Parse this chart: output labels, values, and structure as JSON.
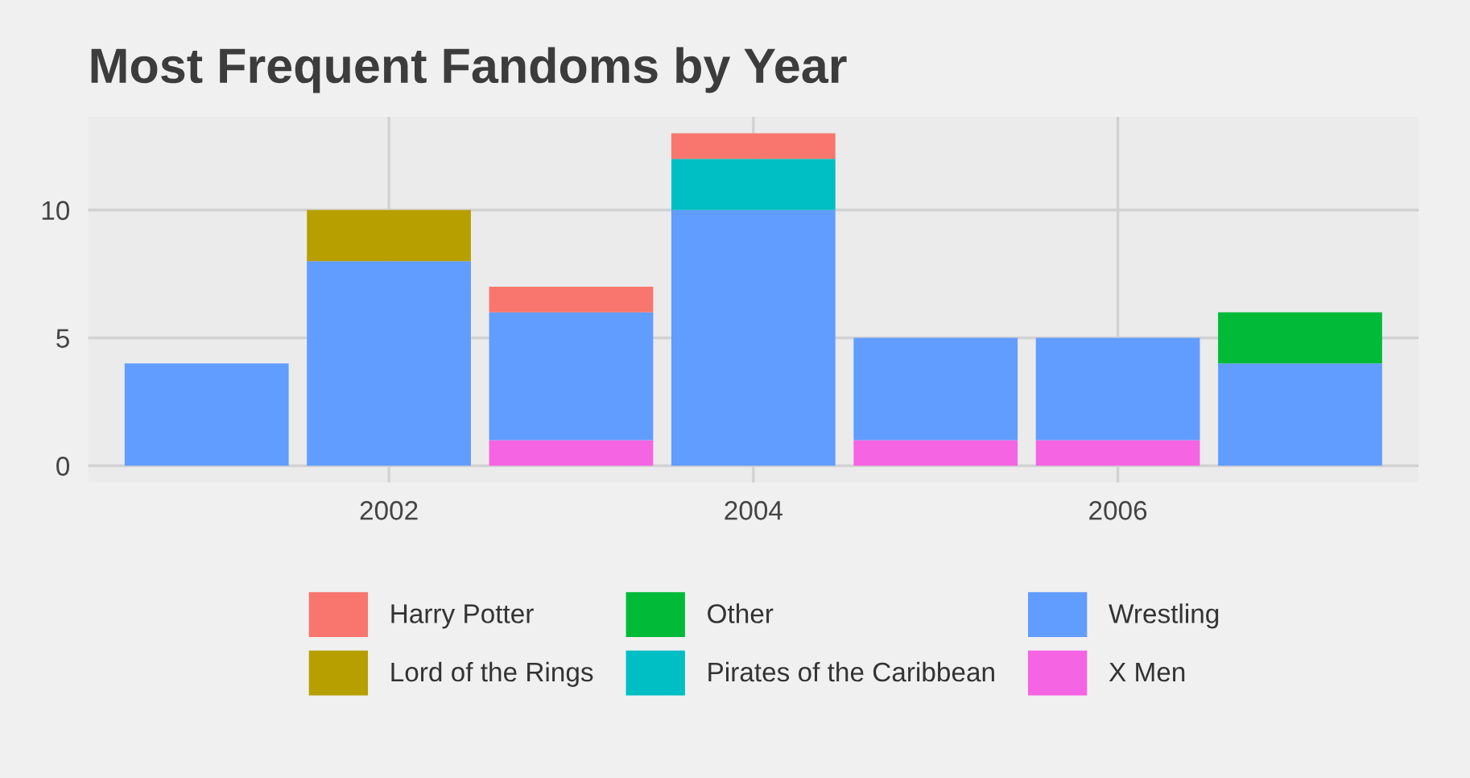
{
  "chart_data": {
    "type": "bar",
    "title": "Most Frequent Fandoms by Year",
    "stacked": true,
    "x": [
      2001,
      2002,
      2003,
      2004,
      2005,
      2006,
      2007
    ],
    "series": [
      {
        "name": "X Men",
        "color": "#f564e3",
        "values": [
          null,
          null,
          1,
          null,
          1,
          1,
          null
        ]
      },
      {
        "name": "Wrestling",
        "color": "#619cff",
        "values": [
          4,
          8,
          5,
          10,
          4,
          4,
          4
        ]
      },
      {
        "name": "Pirates of the Caribbean",
        "color": "#00bfc4",
        "values": [
          null,
          null,
          null,
          2,
          null,
          null,
          null
        ]
      },
      {
        "name": "Other",
        "color": "#00ba38",
        "values": [
          null,
          null,
          null,
          null,
          null,
          null,
          2
        ]
      },
      {
        "name": "Lord of the Rings",
        "color": "#b79f00",
        "values": [
          null,
          2,
          null,
          null,
          null,
          null,
          null
        ]
      },
      {
        "name": "Harry Potter",
        "color": "#f8766d",
        "values": [
          null,
          null,
          1,
          1,
          null,
          null,
          null
        ]
      }
    ],
    "xlim": [
      2000.35,
      2007.65
    ],
    "xticks": [
      2002,
      2004,
      2006
    ],
    "ylim": [
      -0.65,
      13.65
    ],
    "yticks": [
      0,
      5,
      10
    ],
    "grid": true,
    "legend": "bottom"
  }
}
